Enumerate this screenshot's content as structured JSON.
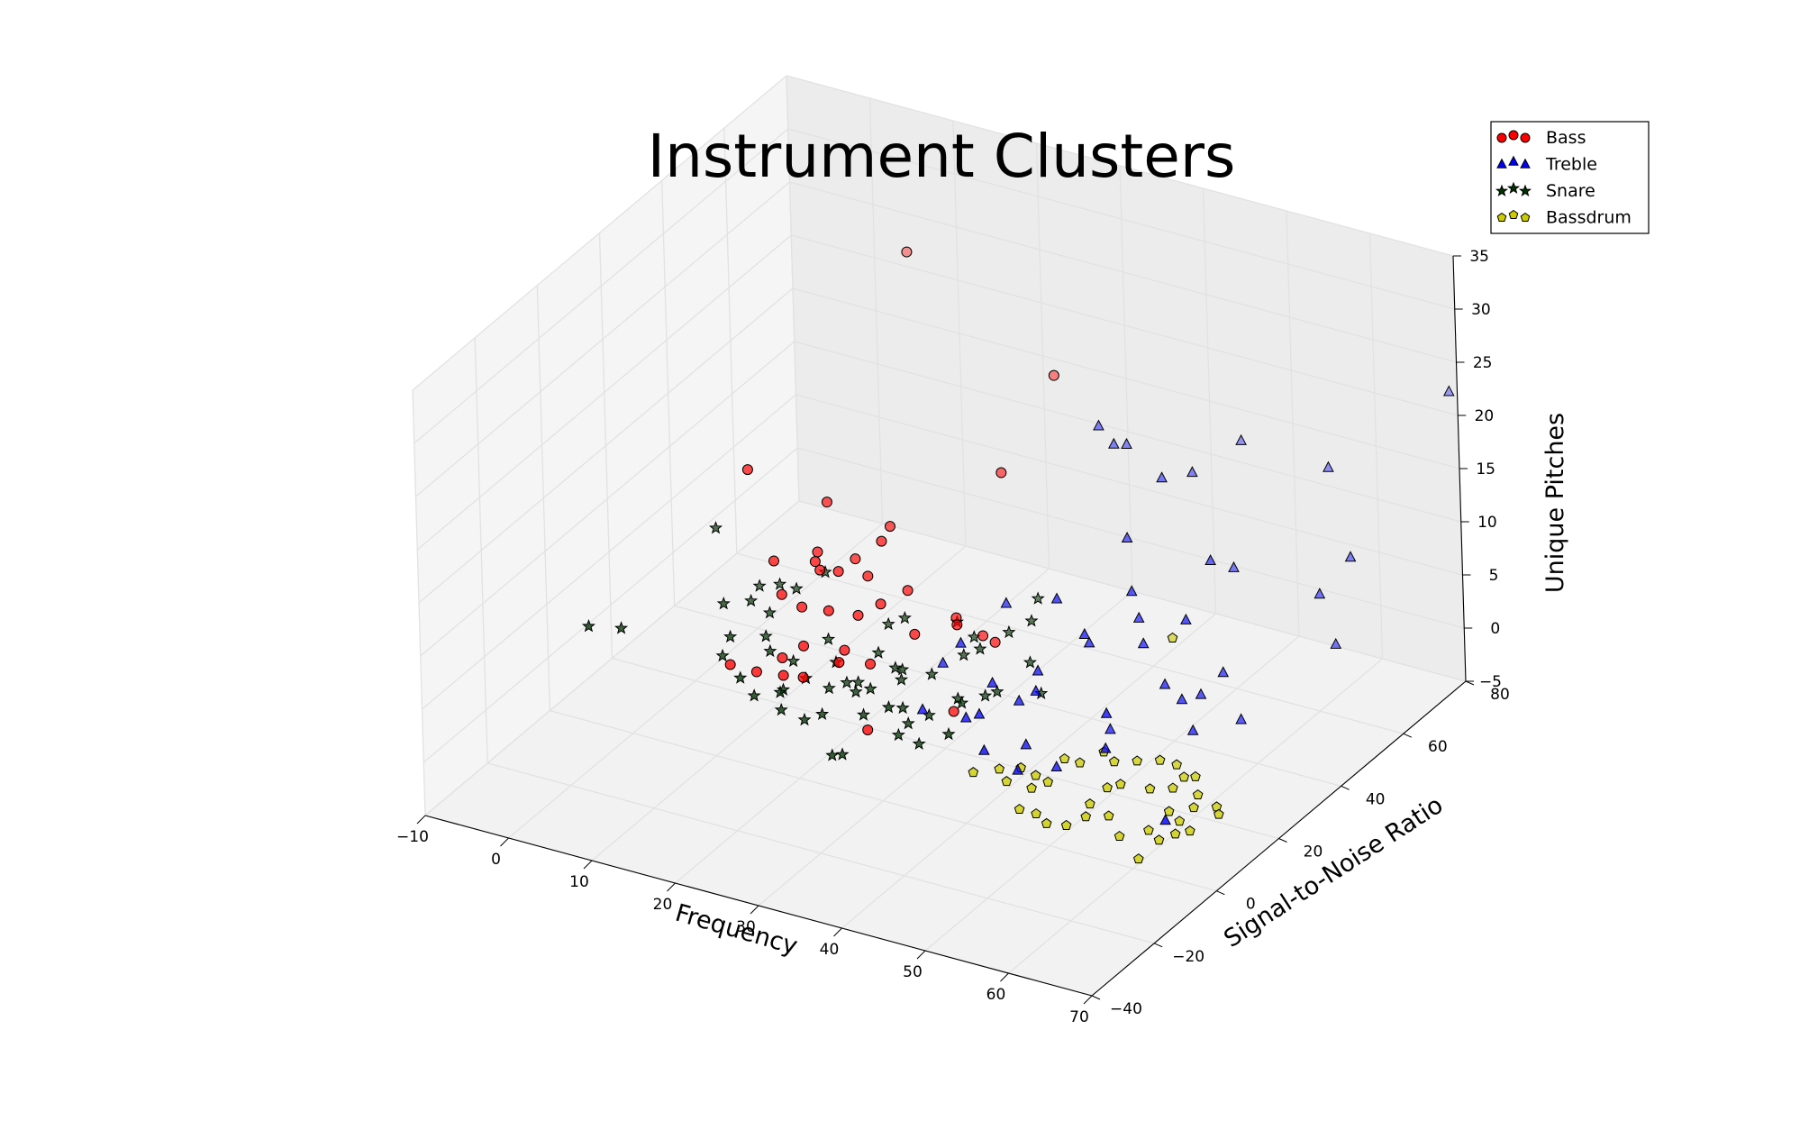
{
  "chart_data": {
    "type": "scatter",
    "projection": "3d",
    "title": "Instrument Clusters",
    "xlabel": "Frequency",
    "ylabel": "Signal-to-Noise Ratio",
    "zlabel": "Unique Pitches",
    "xlim": [
      -10,
      70
    ],
    "ylim": [
      -40,
      80
    ],
    "zlim": [
      -5,
      35
    ],
    "xticks": [
      "−10",
      "0",
      "10",
      "20",
      "30",
      "40",
      "50",
      "60",
      "70"
    ],
    "yticks": [
      "−40",
      "−20",
      "0",
      "20",
      "40",
      "60",
      "80"
    ],
    "zticks": [
      "−5",
      "0",
      "5",
      "10",
      "15",
      "20",
      "25",
      "30",
      "35"
    ],
    "grid": true,
    "legend_position": "top-right",
    "series": [
      {
        "name": "Bass",
        "marker": "circle",
        "color": "#ff0000",
        "points": [
          [
            7,
            72,
            24
          ],
          [
            9,
            15,
            18
          ],
          [
            18,
            12,
            12
          ],
          [
            20,
            14,
            11
          ],
          [
            17,
            10,
            8
          ],
          [
            19,
            5,
            6
          ],
          [
            21,
            8,
            9
          ],
          [
            23,
            12,
            8
          ],
          [
            25,
            14,
            9
          ],
          [
            22,
            10,
            5
          ],
          [
            16,
            6,
            4
          ],
          [
            14,
            3,
            3
          ],
          [
            15,
            9,
            9
          ],
          [
            17,
            16,
            10
          ],
          [
            24,
            3,
            6
          ],
          [
            18,
            1,
            4
          ],
          [
            20,
            2,
            4
          ],
          [
            13,
            12,
            11
          ],
          [
            16,
            18,
            11
          ],
          [
            22,
            18,
            10
          ],
          [
            27,
            5,
            6
          ],
          [
            26,
            20,
            9
          ],
          [
            29,
            14,
            7
          ],
          [
            31,
            22,
            7
          ],
          [
            33,
            25,
            5
          ],
          [
            28,
            1,
            1
          ],
          [
            35,
            10,
            2
          ],
          [
            29,
            60,
            20
          ],
          [
            30,
            40,
            16
          ],
          [
            33,
            17,
            8
          ],
          [
            36,
            21,
            6
          ],
          [
            19,
            22,
            10
          ],
          [
            21,
            28,
            12
          ],
          [
            23,
            20,
            13
          ],
          [
            15,
            24,
            14
          ],
          [
            12,
            0,
            4
          ]
        ]
      },
      {
        "name": "Treble",
        "marker": "triangle",
        "color": "#0000ff",
        "points": [
          [
            35,
            58,
            17
          ],
          [
            36,
            60,
            15
          ],
          [
            36,
            64,
            14
          ],
          [
            44,
            20,
            12
          ],
          [
            48,
            18,
            10
          ],
          [
            50,
            28,
            12
          ],
          [
            55,
            40,
            13
          ],
          [
            58,
            70,
            15
          ],
          [
            65,
            48,
            10
          ],
          [
            66,
            50,
            5
          ],
          [
            55,
            6,
            7
          ],
          [
            52,
            26,
            8
          ],
          [
            50,
            30,
            9
          ],
          [
            47,
            22,
            8
          ],
          [
            45,
            10,
            6
          ],
          [
            43,
            16,
            6
          ],
          [
            41,
            15,
            3
          ],
          [
            40,
            5,
            4
          ],
          [
            42,
            1,
            2
          ],
          [
            44,
            9,
            1
          ],
          [
            46,
            1,
            1
          ],
          [
            48,
            8,
            0
          ],
          [
            50,
            20,
            1
          ],
          [
            38,
            6,
            3
          ],
          [
            39,
            12,
            5
          ],
          [
            33,
            18,
            6
          ],
          [
            34,
            30,
            7
          ],
          [
            32,
            8,
            2
          ],
          [
            30,
            20,
            3
          ],
          [
            62,
            30,
            2
          ],
          [
            60,
            20,
            3
          ],
          [
            58,
            22,
            5
          ],
          [
            56,
            22,
            6
          ],
          [
            60,
            30,
            6
          ],
          [
            58,
            24,
            12
          ],
          [
            45,
            40,
            13
          ],
          [
            44,
            54,
            15
          ],
          [
            45,
            61,
            14
          ],
          [
            46,
            74,
            14
          ],
          [
            65,
            58,
            11
          ],
          [
            69,
            80,
            22
          ],
          [
            52,
            55,
            8
          ],
          [
            58,
            28,
            4
          ],
          [
            66,
            -5,
            2
          ],
          [
            54,
            8,
            3
          ]
        ]
      },
      {
        "name": "Snare",
        "marker": "star",
        "color": "#003300",
        "points": [
          [
            -5,
            0,
            4
          ],
          [
            -3,
            5,
            3
          ],
          [
            3,
            20,
            10
          ],
          [
            5,
            28,
            3
          ],
          [
            7,
            20,
            4
          ],
          [
            9,
            8,
            4
          ],
          [
            11,
            14,
            3
          ],
          [
            12,
            3,
            2
          ],
          [
            14,
            2,
            1
          ],
          [
            16,
            5,
            1
          ],
          [
            18,
            8,
            2
          ],
          [
            20,
            10,
            1
          ],
          [
            21,
            5,
            0
          ],
          [
            22,
            14,
            1
          ],
          [
            24,
            8,
            2
          ],
          [
            26,
            5,
            1
          ],
          [
            28,
            12,
            3
          ],
          [
            30,
            7,
            2
          ],
          [
            31,
            0,
            4
          ],
          [
            32,
            10,
            1
          ],
          [
            33,
            4,
            0
          ],
          [
            34,
            14,
            2
          ],
          [
            35,
            20,
            1
          ],
          [
            36,
            10,
            3
          ],
          [
            37,
            3,
            2
          ],
          [
            6,
            14,
            5
          ],
          [
            8,
            8,
            2
          ],
          [
            10,
            18,
            4
          ],
          [
            13,
            10,
            3
          ],
          [
            15,
            12,
            2
          ],
          [
            17,
            18,
            3
          ],
          [
            19,
            15,
            2
          ],
          [
            21,
            13,
            1
          ],
          [
            23,
            18,
            3
          ],
          [
            25,
            18,
            2
          ],
          [
            27,
            15,
            3
          ],
          [
            29,
            19,
            2
          ],
          [
            31,
            24,
            3
          ],
          [
            33,
            24,
            4
          ],
          [
            35,
            28,
            5
          ],
          [
            37,
            30,
            6
          ],
          [
            39,
            24,
            4
          ],
          [
            41,
            22,
            2
          ],
          [
            38,
            16,
            3
          ],
          [
            24,
            0,
            -2
          ],
          [
            26,
            -2,
            -1
          ],
          [
            20,
            2,
            0
          ],
          [
            18,
            0,
            1
          ],
          [
            16,
            6,
            1
          ],
          [
            22,
            24,
            4
          ],
          [
            24,
            24,
            5
          ],
          [
            28,
            30,
            4
          ],
          [
            30,
            30,
            3
          ],
          [
            34,
            40,
            5
          ],
          [
            13,
            28,
            6
          ],
          [
            11,
            24,
            5
          ],
          [
            9,
            24,
            5
          ],
          [
            29,
            8,
            -1
          ],
          [
            31,
            6,
            1
          ],
          [
            25,
            10,
            2
          ]
        ]
      },
      {
        "name": "Bassdrum",
        "marker": "pentagon",
        "color": "#cccc00",
        "points": [
          [
            43,
            3,
            0
          ],
          [
            48,
            0,
            0
          ],
          [
            50,
            0,
            1
          ],
          [
            52,
            5,
            2
          ],
          [
            55,
            0,
            0
          ],
          [
            56,
            3,
            1
          ],
          [
            58,
            2,
            2
          ],
          [
            60,
            6,
            1
          ],
          [
            62,
            8,
            1
          ],
          [
            63,
            4,
            0
          ],
          [
            64,
            -2,
            -1
          ],
          [
            62,
            0,
            -1
          ],
          [
            60,
            -4,
            -1
          ],
          [
            58,
            -2,
            0
          ],
          [
            56,
            -4,
            0
          ],
          [
            54,
            -5,
            -1
          ],
          [
            66,
            -2,
            0
          ],
          [
            67,
            0,
            0
          ],
          [
            65,
            2,
            0
          ],
          [
            63,
            9,
            2
          ],
          [
            61,
            12,
            2
          ],
          [
            59,
            12,
            2
          ],
          [
            57,
            10,
            2
          ],
          [
            55,
            8,
            2
          ],
          [
            53,
            10,
            2
          ],
          [
            64,
            10,
            2
          ],
          [
            65,
            8,
            1
          ],
          [
            66,
            4,
            1
          ],
          [
            68,
            6,
            1
          ],
          [
            69,
            4,
            1
          ],
          [
            52,
            -6,
            -1
          ],
          [
            50,
            -4,
            -1
          ],
          [
            48,
            -4,
            -1
          ],
          [
            45,
            0,
            0
          ],
          [
            47,
            4,
            0
          ],
          [
            49,
            8,
            1
          ],
          [
            54,
            30,
            8
          ],
          [
            41,
            0,
            0
          ],
          [
            46,
            2,
            1
          ],
          [
            63,
            -6,
            -2
          ]
        ]
      }
    ]
  }
}
